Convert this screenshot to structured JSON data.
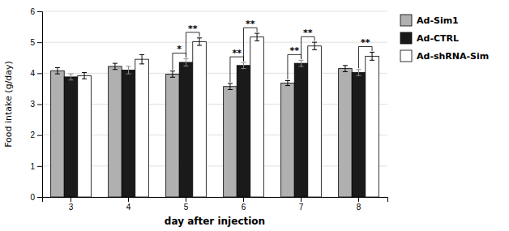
{
  "chart_data": {
    "type": "bar",
    "xlabel": "day after injection",
    "ylabel": "Food intake (g/day)",
    "categories": [
      "3",
      "4",
      "5",
      "6",
      "7",
      "8"
    ],
    "series": [
      {
        "name": "Ad-Sim1",
        "color": "#b0b0b0",
        "values": [
          4.08,
          4.22,
          3.97,
          3.57,
          3.68,
          4.15
        ],
        "errors": [
          0.1,
          0.1,
          0.1,
          0.1,
          0.08,
          0.1
        ]
      },
      {
        "name": "Ad-CTRL",
        "color": "#1a1a1a",
        "values": [
          3.88,
          4.1,
          4.35,
          4.25,
          4.32,
          4.02
        ],
        "errors": [
          0.1,
          0.12,
          0.12,
          0.1,
          0.1,
          0.1
        ]
      },
      {
        "name": "Ad-shRNA-Sim",
        "color": "#ffffff",
        "values": [
          3.92,
          4.45,
          5.02,
          5.17,
          4.88,
          4.55
        ],
        "errors": [
          0.1,
          0.15,
          0.12,
          0.12,
          0.12,
          0.13
        ]
      }
    ],
    "ylim": [
      0,
      6
    ],
    "yticks": [
      0,
      1,
      2,
      3,
      4,
      5,
      6
    ],
    "grid": true,
    "legend": "right",
    "annotations": [
      {
        "category": "5",
        "series": [
          "Ad-Sim1",
          "Ad-CTRL"
        ],
        "text": "*"
      },
      {
        "category": "5",
        "series": [
          "Ad-CTRL",
          "Ad-shRNA-Sim"
        ],
        "text": "**"
      },
      {
        "category": "6",
        "series": [
          "Ad-Sim1",
          "Ad-CTRL"
        ],
        "text": "**"
      },
      {
        "category": "6",
        "series": [
          "Ad-CTRL",
          "Ad-shRNA-Sim"
        ],
        "text": "**"
      },
      {
        "category": "7",
        "series": [
          "Ad-Sim1",
          "Ad-CTRL"
        ],
        "text": "**"
      },
      {
        "category": "7",
        "series": [
          "Ad-CTRL",
          "Ad-shRNA-Sim"
        ],
        "text": "**"
      },
      {
        "category": "8",
        "series": [
          "Ad-CTRL",
          "Ad-shRNA-Sim"
        ],
        "text": "**"
      }
    ]
  }
}
